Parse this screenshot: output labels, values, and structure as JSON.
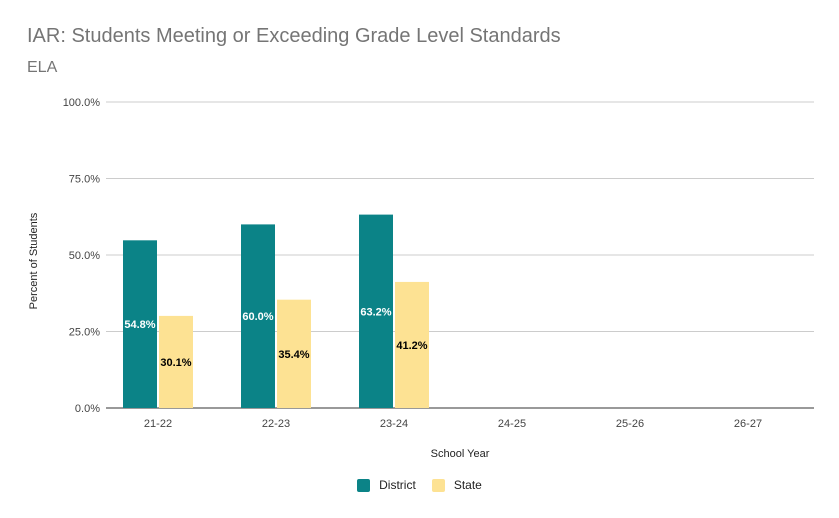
{
  "colors": {
    "district": "#0b8387",
    "state": "#fde293"
  },
  "chart_data": {
    "type": "bar",
    "title": "IAR: Students Meeting or Exceeding Grade Level Standards",
    "subtitle": "ELA",
    "xlabel": "School Year",
    "ylabel": "Percent of Students",
    "categories": [
      "21-22",
      "22-23",
      "23-24",
      "24-25",
      "25-26",
      "26-27"
    ],
    "y_ticks": [
      "0.0%",
      "25.0%",
      "50.0%",
      "75.0%",
      "100.0%"
    ],
    "ylim": [
      0,
      100
    ],
    "grid": true,
    "legend_position": "bottom",
    "series": [
      {
        "name": "District",
        "values": [
          54.8,
          60.0,
          63.2,
          null,
          null,
          null
        ],
        "labels": [
          "54.8%",
          "60.0%",
          "63.2%"
        ]
      },
      {
        "name": "State",
        "values": [
          30.1,
          35.4,
          41.2,
          null,
          null,
          null
        ],
        "labels": [
          "30.1%",
          "35.4%",
          "41.2%"
        ]
      }
    ]
  }
}
